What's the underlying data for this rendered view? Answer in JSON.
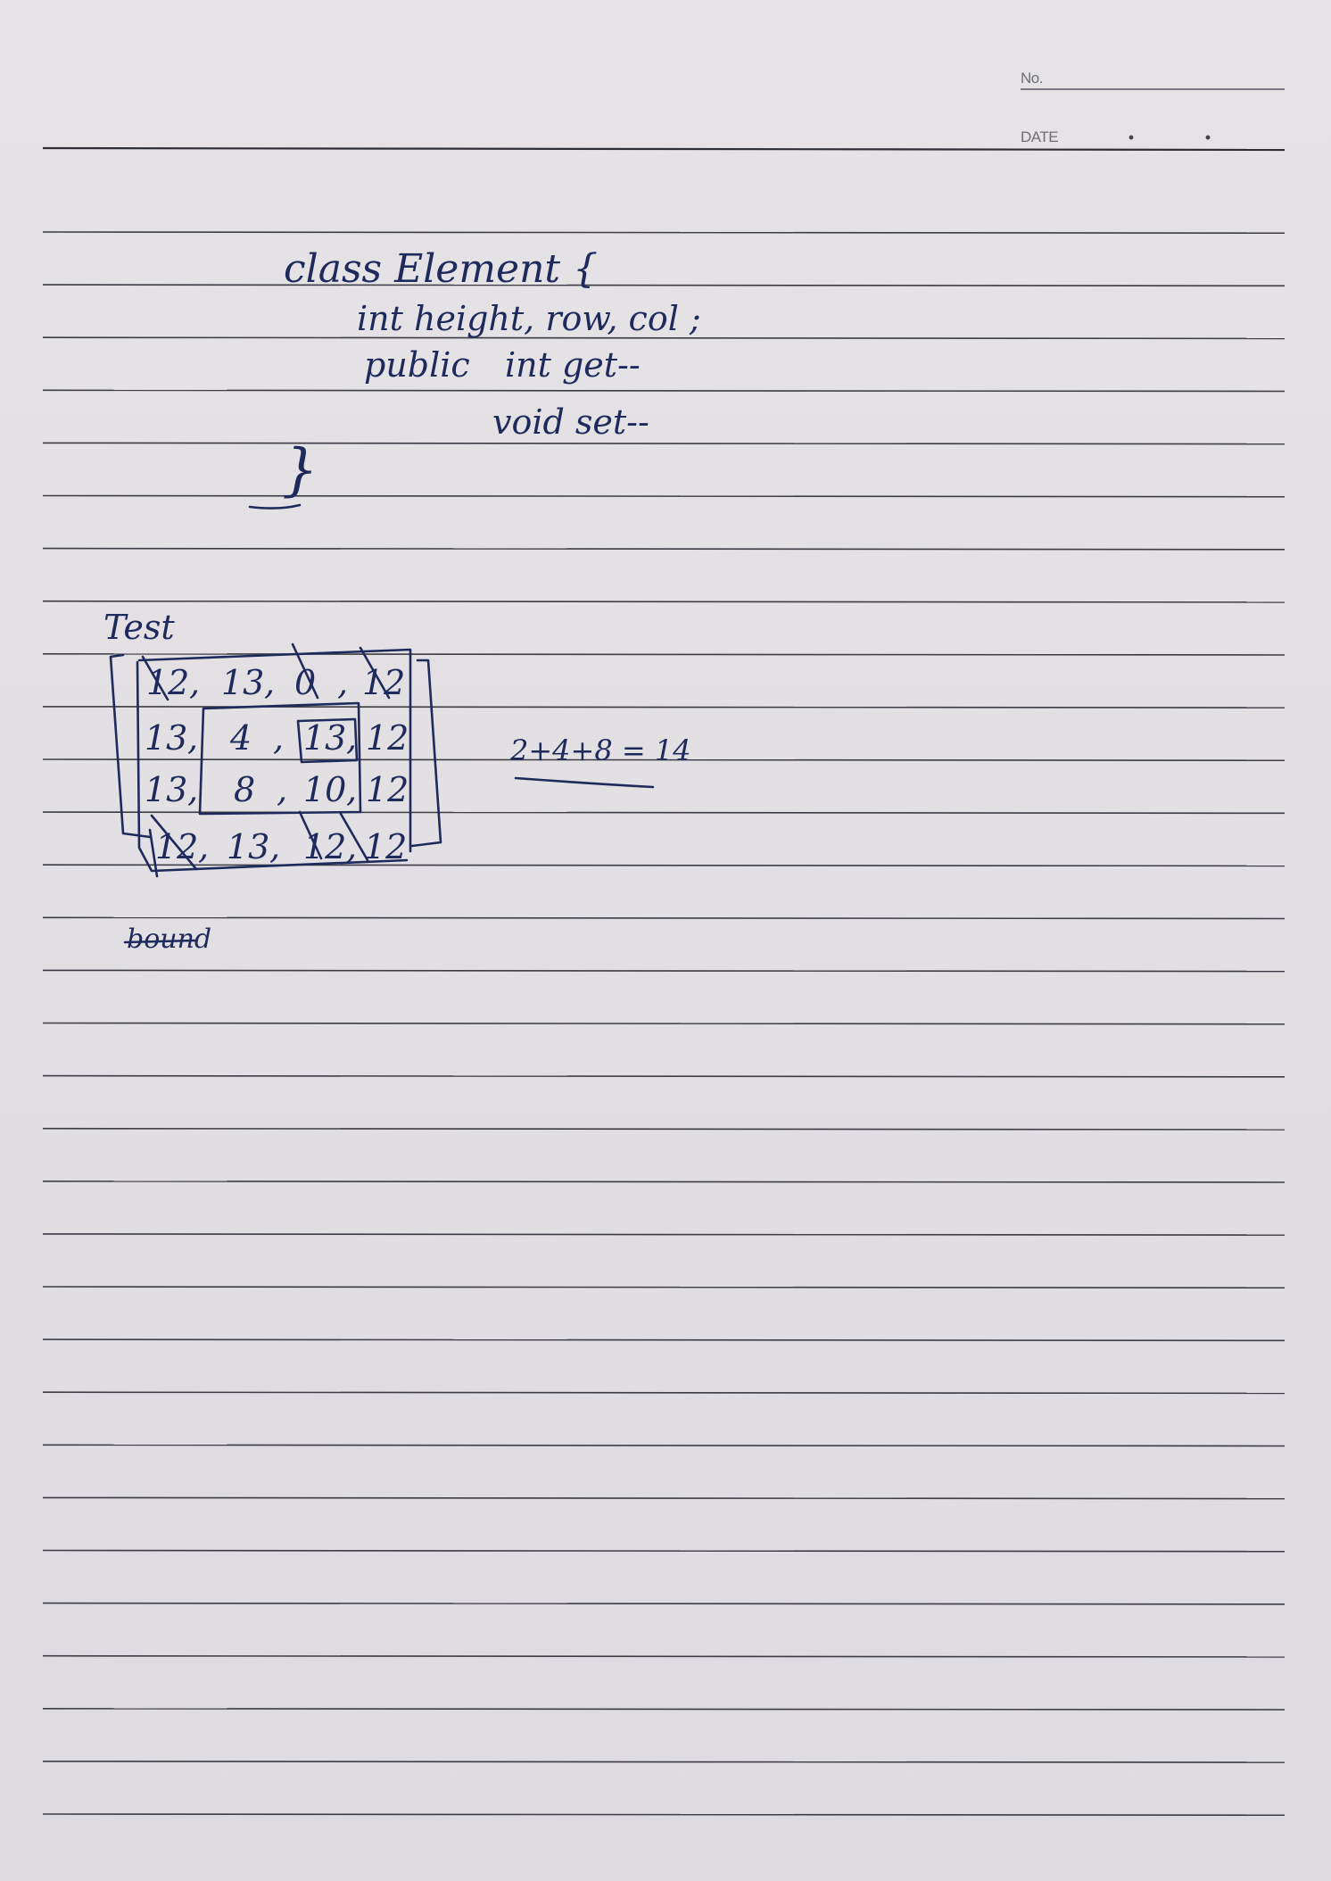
{
  "header": {
    "no_label": "No.",
    "date_label": "DATE"
  },
  "code": {
    "line1": "class Element {",
    "line2": "int height,   row, col ;",
    "line3_a": "public",
    "line3_b": "int get--",
    "line4": "void set--",
    "line5": "}"
  },
  "test": {
    "heading": "Test",
    "rows": [
      [
        "12",
        "13",
        "0",
        "12"
      ],
      [
        "13",
        "4",
        "13",
        "12"
      ],
      [
        "13",
        "8",
        "10",
        "12"
      ],
      [
        "12",
        "13",
        "12",
        "12"
      ]
    ],
    "equation": "2+4+8 = 14",
    "struck_word": "bound"
  }
}
